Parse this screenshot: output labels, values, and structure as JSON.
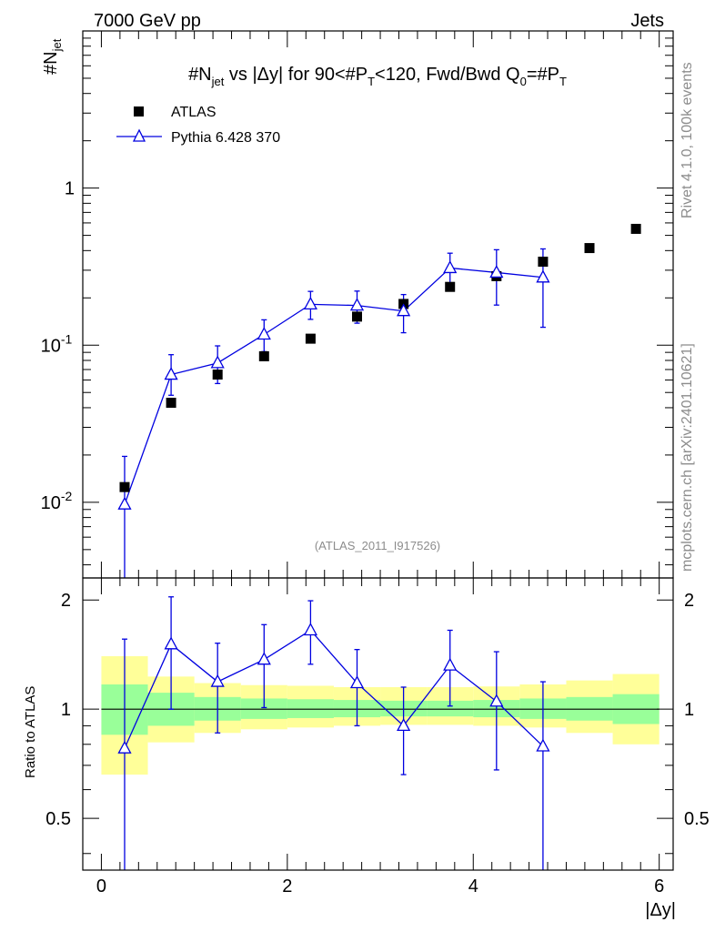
{
  "header": {
    "left": "7000 GeV pp",
    "right": "Jets"
  },
  "side_labels": {
    "rivet": "Rivet 4.1.0,  100k events",
    "mcplots": "mcplots.cern.ch [arXiv:2401.10621]"
  },
  "watermark": "(ATLAS_2011_I917526)",
  "colors": {
    "data": "#000000",
    "mc": "#0000e0",
    "band_inner": "#99ff99",
    "band_outer": "#ffff99"
  },
  "chart_data": [
    {
      "type": "scatter",
      "title": "#N_jet vs |Δy| for 90<#P_T<120, Fwd/Bwd Q_0=#P_T",
      "title_parts": {
        "a": "#N",
        "a_sub": "jet",
        "b": " vs |Δy| for 90<#P",
        "b_sub": "T",
        "c": "<120, Fwd/Bwd Q",
        "c_sub": "0",
        "d": "=#P",
        "d_sub": "T"
      },
      "ylabel": "#N",
      "ylabel_sub": "jet",
      "xlabel": "|Δy|",
      "yscale": "log",
      "xlim": [
        -0.2,
        6.15
      ],
      "ylim": [
        0.0033,
        10
      ],
      "y_ticks": [
        {
          "value": 0.01,
          "label": "10",
          "exp": "-2"
        },
        {
          "value": 0.1,
          "label": "10",
          "exp": "-1"
        },
        {
          "value": 1,
          "label": "1",
          "exp": ""
        }
      ],
      "legend": {
        "position": "top-left",
        "entries": [
          "ATLAS",
          "Pythia 6.428 370"
        ]
      },
      "series": [
        {
          "name": "ATLAS",
          "marker": "square",
          "x": [
            0.25,
            0.75,
            1.25,
            1.75,
            2.25,
            2.75,
            3.25,
            3.75,
            4.25,
            4.75,
            5.25,
            5.75
          ],
          "y": [
            0.0125,
            0.043,
            0.065,
            0.085,
            0.11,
            0.152,
            0.183,
            0.235,
            0.275,
            0.34,
            0.415,
            0.55
          ]
        },
        {
          "name": "Pythia 6.428 370",
          "marker": "triangle-open",
          "x": [
            0.25,
            0.75,
            1.25,
            1.75,
            2.25,
            2.75,
            3.25,
            3.75,
            4.25,
            4.75
          ],
          "y": [
            0.0097,
            0.065,
            0.077,
            0.117,
            0.182,
            0.179,
            0.165,
            0.31,
            0.29,
            0.27
          ],
          "err_lo": [
            0.0097,
            0.017,
            0.02,
            0.026,
            0.036,
            0.041,
            0.045,
            0.07,
            0.11,
            0.14
          ],
          "err_hi": [
            0.0099,
            0.022,
            0.022,
            0.028,
            0.038,
            0.042,
            0.045,
            0.075,
            0.115,
            0.14
          ]
        }
      ]
    },
    {
      "type": "line",
      "ylabel": "Ratio to ATLAS",
      "xlabel": "|Δy|",
      "xlim": [
        -0.2,
        6.15
      ],
      "ylim": [
        0.36,
        2.3
      ],
      "yscale": "log",
      "x_ticks": [
        0,
        2,
        4,
        6
      ],
      "y_ticks": [
        0.5,
        1,
        2
      ],
      "bands": {
        "x_edges": [
          0,
          0.5,
          1,
          1.5,
          2,
          2.5,
          3,
          3.5,
          4,
          4.5,
          5,
          5.5,
          6
        ],
        "inner_lo": [
          0.85,
          0.9,
          0.93,
          0.94,
          0.945,
          0.95,
          0.955,
          0.955,
          0.95,
          0.94,
          0.93,
          0.91
        ],
        "inner_hi": [
          1.17,
          1.11,
          1.08,
          1.07,
          1.065,
          1.06,
          1.055,
          1.055,
          1.06,
          1.07,
          1.08,
          1.1
        ],
        "outer_lo": [
          0.66,
          0.81,
          0.86,
          0.88,
          0.89,
          0.9,
          0.905,
          0.905,
          0.9,
          0.89,
          0.86,
          0.8
        ],
        "outer_hi": [
          1.4,
          1.23,
          1.18,
          1.165,
          1.16,
          1.15,
          1.15,
          1.15,
          1.155,
          1.17,
          1.2,
          1.25
        ]
      },
      "series": [
        {
          "name": "Pythia 6.428 370 / ATLAS",
          "x": [
            0.25,
            0.75,
            1.25,
            1.75,
            2.25,
            2.75,
            3.25,
            3.75,
            4.25,
            4.75
          ],
          "y": [
            0.78,
            1.51,
            1.19,
            1.37,
            1.65,
            1.18,
            0.9,
            1.32,
            1.05,
            0.79
          ],
          "err_lo": [
            0.78,
            0.51,
            0.33,
            0.36,
            0.32,
            0.28,
            0.24,
            0.3,
            0.37,
            0.79
          ],
          "err_hi": [
            0.78,
            0.53,
            0.33,
            0.34,
            0.34,
            0.28,
            0.25,
            0.33,
            0.39,
            0.4
          ]
        }
      ]
    }
  ]
}
